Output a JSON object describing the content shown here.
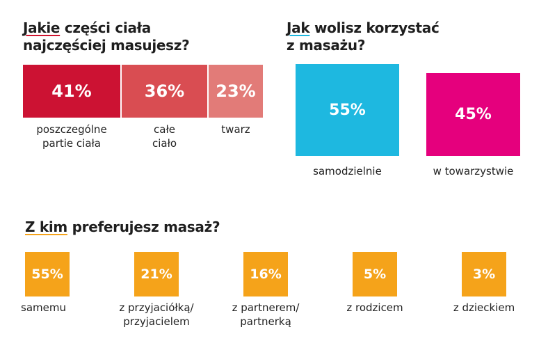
{
  "chart_data": [
    {
      "type": "bar",
      "title_underlined": "Jakie",
      "title_rest": " części ciała",
      "title_line2": "najczęściej masujesz?",
      "underline_color": "#d0142f",
      "categories": [
        "poszczególne partie ciała",
        "całe ciało",
        "twarz"
      ],
      "label_lines": [
        [
          "poszczególne",
          "partie ciała"
        ],
        [
          "całe",
          "ciało"
        ],
        [
          "twarz"
        ]
      ],
      "values": [
        41,
        36,
        23
      ],
      "value_labels": [
        "41%",
        "36%",
        "23%"
      ],
      "colors": [
        "#cc1233",
        "#d94d52",
        "#e27b78"
      ]
    },
    {
      "type": "bar",
      "title_underlined": "Jak",
      "title_rest": " wolisz korzystać",
      "title_line2": "z masażu?",
      "underline_color": "#1eb8e0",
      "categories": [
        "samodzielnie",
        "w towarzystwie"
      ],
      "values": [
        55,
        45
      ],
      "value_labels": [
        "55%",
        "45%"
      ],
      "colors": [
        "#1eb8e0",
        "#e5007d"
      ]
    },
    {
      "type": "bar",
      "title_underlined": "Z kim",
      "title_rest": " preferujesz masaż?",
      "underline_color": "#f5a31a",
      "categories": [
        "samemu",
        "z przyjaciółką/ przyjacielem",
        "z partnerem/ partnerką",
        "z rodzicem",
        "z dzieckiem"
      ],
      "label_lines": [
        [
          "samemu"
        ],
        [
          "z przyjaciółką/",
          "przyjacielem"
        ],
        [
          "z partnerem/",
          "partnerką"
        ],
        [
          "z rodzicem"
        ],
        [
          "z dzieckiem"
        ]
      ],
      "values": [
        55,
        21,
        16,
        5,
        3
      ],
      "value_labels": [
        "55%",
        "21%",
        "16%",
        "5%",
        "3%"
      ],
      "color": "#f5a31a"
    }
  ]
}
